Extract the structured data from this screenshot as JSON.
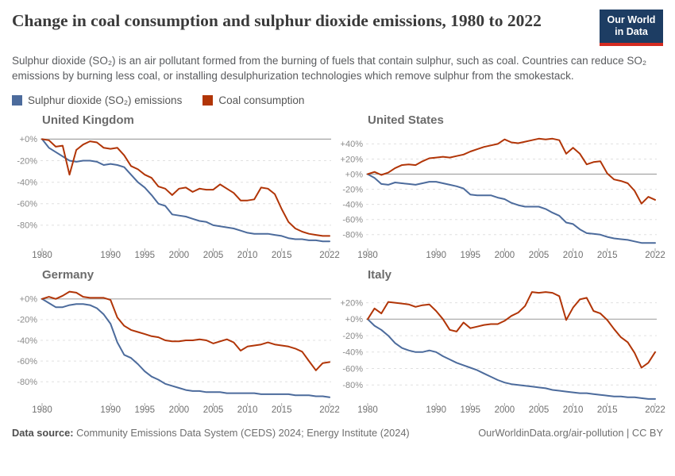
{
  "header": {
    "title": "Change in coal consumption and sulphur dioxide emissions, 1980 to 2022",
    "logo": {
      "line1": "Our World",
      "line2": "in Data"
    },
    "logo_bg": "#1d3d63",
    "logo_bar": "#d42b21"
  },
  "subtitle": "Sulphur dioxide (SO₂) is an air pollutant formed from the burning of fuels that contain sulphur, such as coal. Countries can reduce SO₂ emissions by burning less coal, or installing desulphurization technologies which remove sulphur from the smokestack.",
  "legend": [
    {
      "label": "Sulphur dioxide (SO₂) emissions",
      "color": "#4C6B9C"
    },
    {
      "label": "Coal consumption",
      "color": "#B13507"
    }
  ],
  "footer": {
    "source_label": "Data source:",
    "source_text": " Community Emissions Data System (CEDS) 2024; Energy Institute (2024)",
    "right_text": "OurWorldinData.org/air-pollution | CC BY"
  },
  "chart_data": [
    {
      "type": "line",
      "title": "United Kingdom",
      "x_start": 1980,
      "x_end": 2022,
      "x_ticks": [
        1980,
        1990,
        1995,
        2000,
        2005,
        2010,
        2015,
        2022
      ],
      "y_ticks": [
        0,
        -20,
        -40,
        -60,
        -80
      ],
      "ylim": [
        -100,
        4
      ],
      "series": [
        {
          "name": "Sulphur dioxide (SO₂) emissions",
          "color": "#4C6B9C",
          "values": [
            0,
            -8,
            -12,
            -16,
            -20,
            -21,
            -20,
            -20,
            -21,
            -24,
            -23,
            -24,
            -26,
            -33,
            -40,
            -45,
            -52,
            -60,
            -62,
            -70,
            -71,
            -72,
            -74,
            -76,
            -77,
            -80,
            -81,
            -82,
            -83,
            -85,
            -87,
            -88,
            -88,
            -88,
            -89,
            -90,
            -92,
            -93,
            -93,
            -94,
            -94,
            -95,
            -95
          ]
        },
        {
          "name": "Coal consumption",
          "color": "#B13507",
          "values": [
            0,
            -1,
            -7,
            -6,
            -33,
            -10,
            -5,
            -2,
            -3,
            -8,
            -9,
            -8,
            -15,
            -25,
            -28,
            -33,
            -36,
            -44,
            -46,
            -52,
            -46,
            -45,
            -49,
            -46,
            -47,
            -47,
            -42,
            -46,
            -50,
            -57,
            -57,
            -56,
            -45,
            -46,
            -51,
            -65,
            -77,
            -83,
            -86,
            -88,
            -89,
            -90,
            -90
          ]
        }
      ]
    },
    {
      "type": "line",
      "title": "United States",
      "x_start": 1980,
      "x_end": 2022,
      "x_ticks": [
        1980,
        1990,
        1995,
        2000,
        2005,
        2010,
        2015,
        2022
      ],
      "y_ticks": [
        40,
        20,
        0,
        -20,
        -40,
        -60,
        -80
      ],
      "ylim": [
        -96,
        52
      ],
      "series": [
        {
          "name": "Sulphur dioxide (SO₂) emissions",
          "color": "#4C6B9C",
          "values": [
            0,
            -5,
            -13,
            -14,
            -11,
            -12,
            -13,
            -14,
            -12,
            -10,
            -10,
            -12,
            -14,
            -16,
            -19,
            -27,
            -28,
            -28,
            -28,
            -31,
            -33,
            -38,
            -41,
            -43,
            -43,
            -43,
            -46,
            -51,
            -55,
            -64,
            -66,
            -73,
            -78,
            -79,
            -80,
            -83,
            -85,
            -86,
            -87,
            -89,
            -91,
            -91,
            -91
          ]
        },
        {
          "name": "Coal consumption",
          "color": "#B13507",
          "values": [
            0,
            3,
            -1,
            2,
            8,
            12,
            13,
            12,
            17,
            21,
            22,
            23,
            22,
            24,
            26,
            30,
            33,
            36,
            38,
            40,
            46,
            42,
            41,
            43,
            45,
            47,
            46,
            47,
            45,
            27,
            35,
            27,
            13,
            16,
            17,
            1,
            -7,
            -9,
            -12,
            -22,
            -39,
            -30,
            -34
          ]
        }
      ]
    },
    {
      "type": "line",
      "title": "Germany",
      "x_start": 1980,
      "x_end": 2022,
      "x_ticks": [
        1980,
        1990,
        1995,
        2000,
        2005,
        2010,
        2015,
        2022
      ],
      "y_ticks": [
        0,
        -20,
        -40,
        -60,
        -80
      ],
      "ylim": [
        -99,
        9
      ],
      "series": [
        {
          "name": "Sulphur dioxide (SO₂) emissions",
          "color": "#4C6B9C",
          "values": [
            0,
            -4,
            -8,
            -8,
            -6,
            -5,
            -5,
            -6,
            -9,
            -15,
            -24,
            -42,
            -54,
            -57,
            -63,
            -70,
            -75,
            -78,
            -82,
            -84,
            -86,
            -88,
            -89,
            -89,
            -90,
            -90,
            -90,
            -91,
            -91,
            -91,
            -91,
            -91,
            -92,
            -92,
            -92,
            -92,
            -92,
            -93,
            -93,
            -93,
            -94,
            -94,
            -95
          ]
        },
        {
          "name": "Coal consumption",
          "color": "#B13507",
          "values": [
            0,
            2,
            0,
            3,
            7,
            6,
            2,
            1,
            1,
            1,
            -1,
            -18,
            -26,
            -30,
            -32,
            -34,
            -36,
            -37,
            -40,
            -41,
            -41,
            -40,
            -40,
            -39,
            -40,
            -43,
            -41,
            -39,
            -42,
            -50,
            -46,
            -45,
            -44,
            -42,
            -44,
            -45,
            -46,
            -48,
            -51,
            -60,
            -69,
            -62,
            -61
          ]
        }
      ]
    },
    {
      "type": "line",
      "title": "Italy",
      "x_start": 1980,
      "x_end": 2022,
      "x_ticks": [
        1980,
        1990,
        1995,
        2000,
        2005,
        2010,
        2015,
        2022
      ],
      "y_ticks": [
        20,
        0,
        -20,
        -40,
        -60,
        -80
      ],
      "ylim": [
        -100,
        36
      ],
      "series": [
        {
          "name": "Sulphur dioxide (SO₂) emissions",
          "color": "#4C6B9C",
          "values": [
            0,
            -8,
            -13,
            -20,
            -29,
            -35,
            -38,
            -40,
            -40,
            -38,
            -40,
            -45,
            -49,
            -53,
            -56,
            -59,
            -62,
            -66,
            -70,
            -74,
            -77,
            -79,
            -80,
            -81,
            -82,
            -83,
            -84,
            -86,
            -87,
            -88,
            -89,
            -90,
            -90,
            -91,
            -92,
            -93,
            -94,
            -94,
            -95,
            -95,
            -96,
            -97,
            -97
          ]
        },
        {
          "name": "Coal consumption",
          "color": "#B13507",
          "values": [
            0,
            13,
            7,
            21,
            20,
            19,
            18,
            15,
            17,
            18,
            10,
            0,
            -13,
            -15,
            -4,
            -11,
            -9,
            -7,
            -6,
            -6,
            -2,
            4,
            8,
            16,
            33,
            32,
            33,
            32,
            28,
            -1,
            14,
            24,
            26,
            10,
            7,
            -1,
            -12,
            -22,
            -28,
            -41,
            -59,
            -53,
            -40
          ]
        }
      ]
    }
  ],
  "chart_style": {
    "grid_color": "#e0e0e0",
    "zero_line_color": "#a5a5a5",
    "y_label_color": "#8a8a8a",
    "x_label_color": "#707070",
    "tick_color": "#a8a8a8"
  }
}
